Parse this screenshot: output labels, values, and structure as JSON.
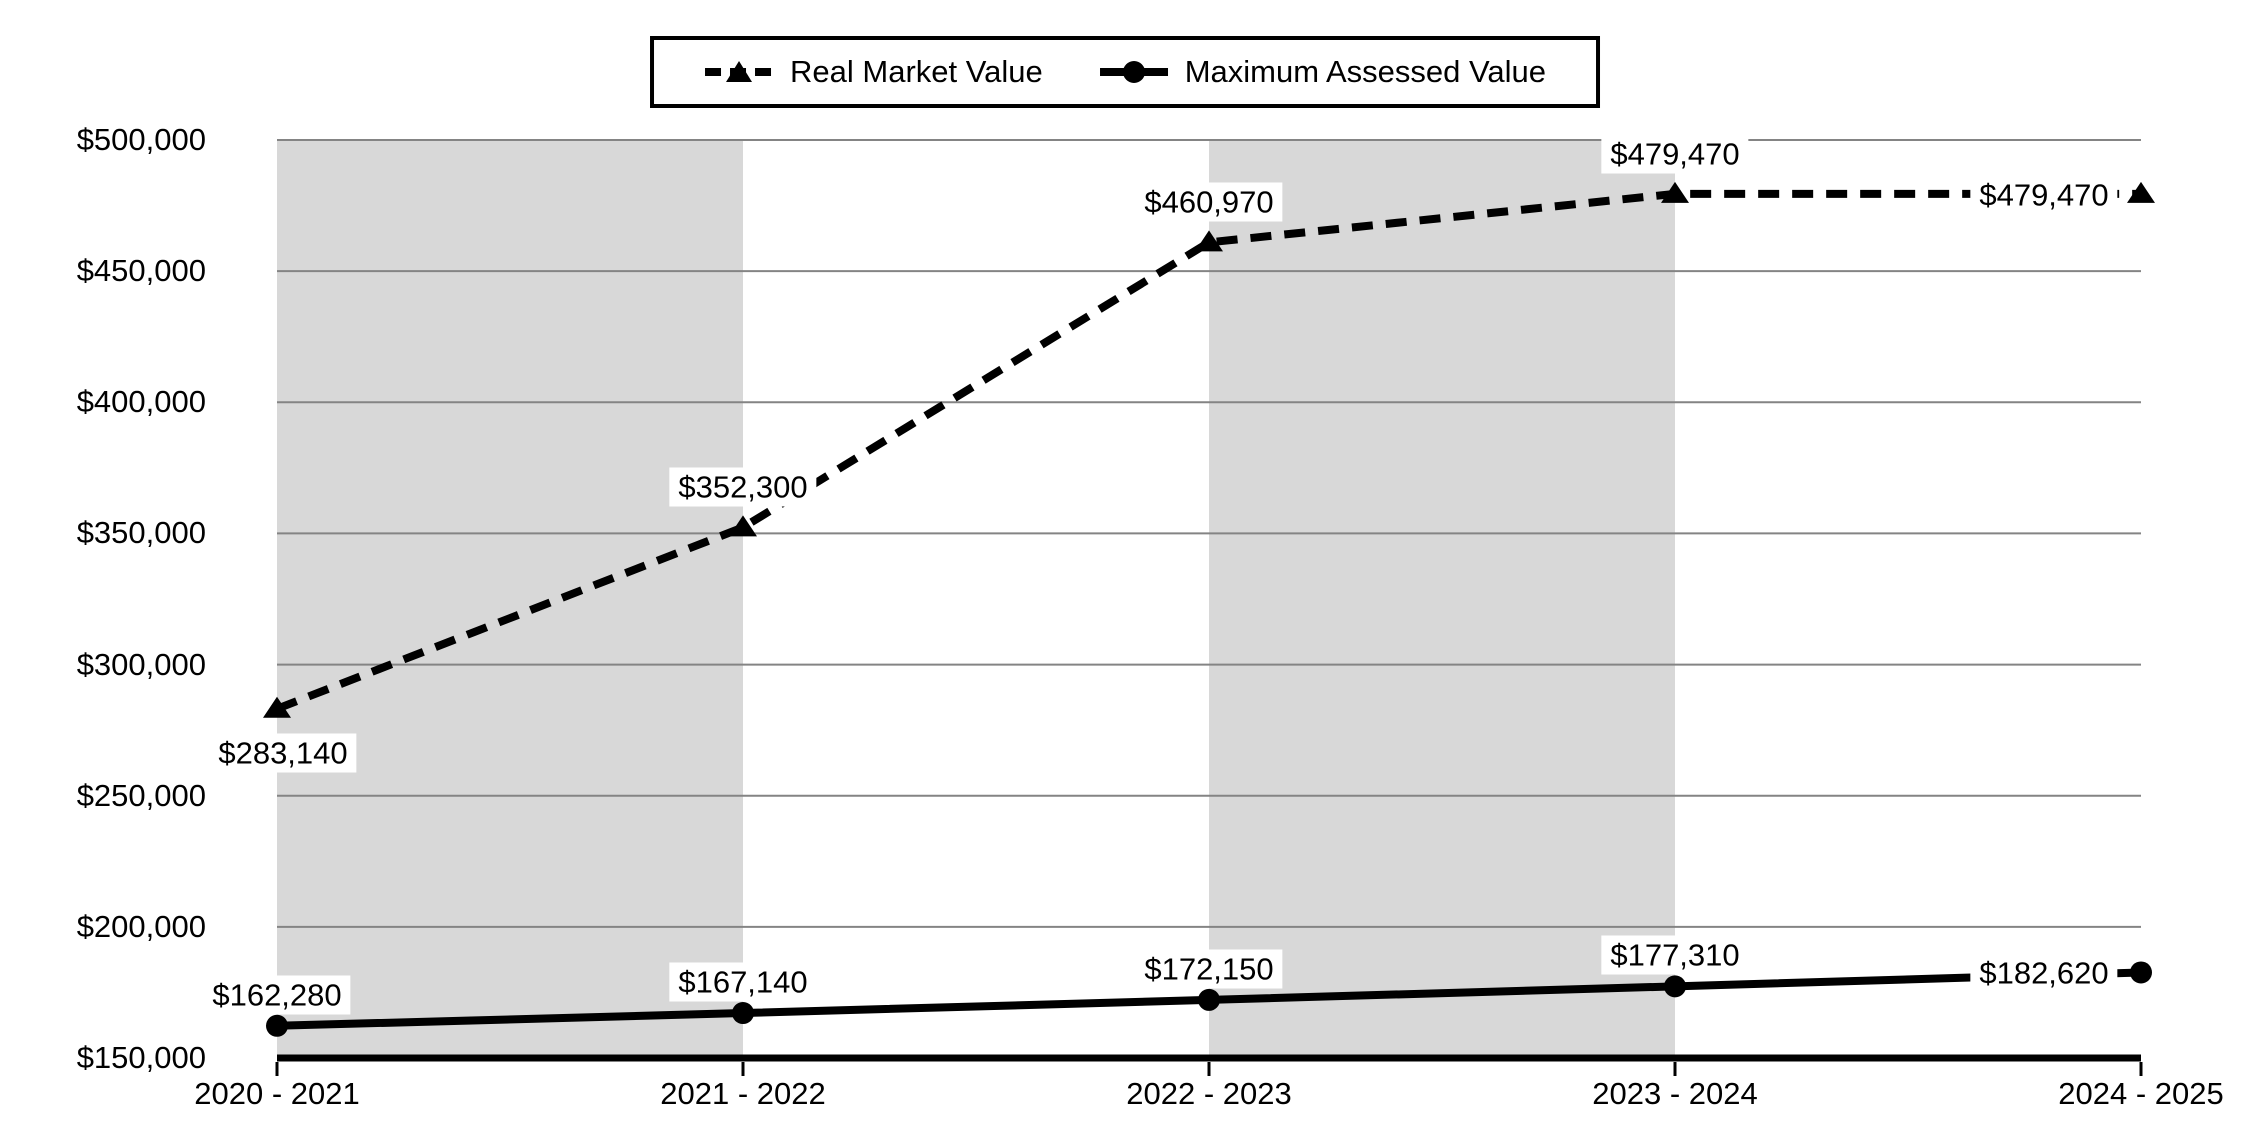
{
  "legend": {
    "items": [
      {
        "label": "Real Market Value",
        "marker": "triangle",
        "line_style": "dashed"
      },
      {
        "label": "Maximum Assessed Value",
        "marker": "circle",
        "line_style": "solid"
      }
    ]
  },
  "chart_data": {
    "type": "line",
    "title": "",
    "xlabel": "",
    "ylabel": "",
    "categories": [
      "2020 - 2021",
      "2021 - 2022",
      "2022 - 2023",
      "2023 - 2024",
      "2024 - 2025"
    ],
    "series": [
      {
        "name": "Real Market Value",
        "line_style": "dashed",
        "marker": "triangle",
        "values": [
          283140,
          352300,
          460970,
          479470,
          479470
        ],
        "point_labels": [
          "$283,140",
          "$352,300",
          "$460,970",
          "$479,470",
          "$479,470"
        ]
      },
      {
        "name": "Maximum Assessed Value",
        "line_style": "solid",
        "marker": "circle",
        "values": [
          162280,
          167140,
          172150,
          177310,
          182620
        ],
        "point_labels": [
          "$162,280",
          "$167,140",
          "$172,150",
          "$177,310",
          "$182,620"
        ]
      }
    ],
    "ylim": [
      150000,
      500000
    ],
    "ytick_step": 50000,
    "ytick_labels": [
      "$150,000",
      "$200,000",
      "$250,000",
      "$300,000",
      "$350,000",
      "$400,000",
      "$450,000",
      "$500,000"
    ],
    "shaded_bands": [
      [
        0,
        1
      ],
      [
        2,
        3
      ]
    ],
    "grid": "horizontal",
    "legend_position": "top-center",
    "colors": {
      "series": "#000000",
      "band": "#d8d8d8",
      "gridline": "#848484",
      "background": "#ffffff",
      "label_background": "#ffffff"
    }
  }
}
